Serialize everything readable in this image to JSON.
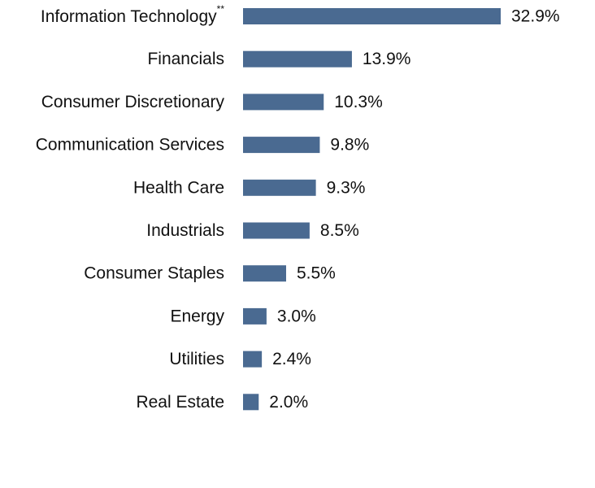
{
  "chart_data": {
    "type": "bar",
    "orientation": "horizontal",
    "categories": [
      "Information Technology",
      "Financials",
      "Consumer Discretionary",
      "Communication Services",
      "Health Care",
      "Industrials",
      "Consumer Staples",
      "Energy",
      "Utilities",
      "Real Estate"
    ],
    "footnote_markers": [
      "**",
      "",
      "",
      "",
      "",
      "",
      "",
      "",
      "",
      ""
    ],
    "values": [
      32.9,
      13.9,
      10.3,
      9.8,
      9.3,
      8.5,
      5.5,
      3.0,
      2.4,
      2.0
    ],
    "value_labels": [
      "32.9%",
      "13.9%",
      "10.3%",
      "9.8%",
      "9.3%",
      "8.5%",
      "5.5%",
      "3.0%",
      "2.4%",
      "2.0%"
    ],
    "xlim": [
      0,
      32.9
    ],
    "grid": false,
    "bar_color": "#4a6a91"
  }
}
